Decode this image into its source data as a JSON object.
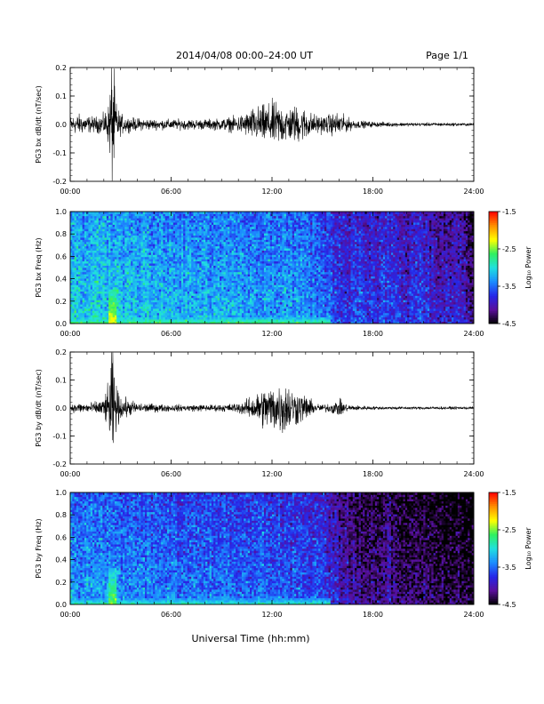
{
  "header": {
    "title": "2014/04/08  00:00–24:00 UT",
    "page": "Page 1/1"
  },
  "footer": {
    "xlabel": "Universal Time (hh:mm)"
  },
  "colors": {
    "trace": "#000000",
    "colormap": [
      "#000000",
      "#5a0f9a",
      "#2626e8",
      "#1c8cff",
      "#20e0e0",
      "#30f060",
      "#ffff00",
      "#ff9000",
      "#ff0000"
    ]
  },
  "chart_data": [
    {
      "type": "line",
      "title": "",
      "ylabel": "PG3 bx dB/dt (nT/sec)",
      "xlabel": "",
      "x_ticks": [
        "00:00",
        "06:00",
        "12:00",
        "18:00",
        "24:00"
      ],
      "xlim_hours": [
        0,
        24
      ],
      "ylim": [
        -0.2,
        0.2
      ],
      "y_ticks": [
        "0.2",
        "0.1",
        "0.0",
        "-0.1",
        "-0.2"
      ],
      "series": [
        {
          "envelope": {
            "x_hours": [
              0,
              0.5,
              1,
              1.5,
              2,
              2.3,
              2.45,
              2.6,
              2.75,
              3,
              3.5,
              4,
              5,
              6,
              7,
              8,
              9,
              10,
              10.5,
              11,
              11.5,
              12,
              12.5,
              13,
              13.5,
              14,
              14.5,
              15,
              15.5,
              16,
              16.5,
              17,
              18,
              20,
              22,
              24
            ],
            "amplitude": [
              0.025,
              0.03,
              0.025,
              0.022,
              0.03,
              0.06,
              0.2,
              0.15,
              0.06,
              0.03,
              0.02,
              0.018,
              0.015,
              0.015,
              0.015,
              0.015,
              0.017,
              0.025,
              0.035,
              0.05,
              0.055,
              0.065,
              0.06,
              0.05,
              0.055,
              0.045,
              0.03,
              0.025,
              0.03,
              0.035,
              0.02,
              0.012,
              0.008,
              0.005,
              0.005,
              0.004
            ]
          }
        }
      ]
    },
    {
      "type": "heatmap",
      "title": "",
      "ylabel": "PG3 bx Freq (Hz)",
      "xlabel": "",
      "x_ticks": [
        "00:00",
        "06:00",
        "12:00",
        "18:00",
        "24:00"
      ],
      "xlim_hours": [
        0,
        24
      ],
      "ylim": [
        0,
        1
      ],
      "y_ticks": [
        "1.0",
        "0.8",
        "0.6",
        "0.4",
        "0.2",
        "0.0"
      ],
      "colorbar": {
        "label": "Log₁₀ Power",
        "range": [
          -4.5,
          -1.5
        ],
        "ticks": [
          "-1.5",
          "-2.5",
          "-3.5",
          "-4.5"
        ]
      },
      "power_profile": {
        "x_hours": [
          0,
          2,
          6,
          10,
          12,
          14,
          15.5,
          16.5,
          17,
          18,
          19,
          20,
          21,
          22,
          23,
          24
        ],
        "level": [
          -3.05,
          -3.05,
          -3.15,
          -3.2,
          -3.25,
          -3.3,
          -3.45,
          -3.8,
          -3.55,
          -3.75,
          -3.6,
          -3.85,
          -3.65,
          -3.9,
          -3.8,
          -4.1
        ]
      },
      "features": [
        {
          "name": "low-frequency enhancement",
          "x_hours": [
            0,
            15.5
          ],
          "freq_below": 0.05,
          "level": -2.6
        },
        {
          "name": "burst",
          "x_hours": [
            2.3,
            2.7
          ],
          "freq_below": 0.3,
          "level": -2.3
        }
      ]
    },
    {
      "type": "line",
      "title": "",
      "ylabel": "PG3 by dB/dt (nT/sec)",
      "xlabel": "",
      "x_ticks": [
        "00:00",
        "06:00",
        "12:00",
        "18:00",
        "24:00"
      ],
      "xlim_hours": [
        0,
        24
      ],
      "ylim": [
        -0.2,
        0.2
      ],
      "y_ticks": [
        "0.2",
        "0.1",
        "0.0",
        "-0.1",
        "-0.2"
      ],
      "series": [
        {
          "envelope": {
            "x_hours": [
              0,
              0.5,
              1,
              1.5,
              2,
              2.3,
              2.45,
              2.6,
              2.75,
              3,
              3.5,
              4,
              5,
              6,
              7,
              8,
              9,
              10,
              10.5,
              11,
              11.5,
              12,
              12.5,
              13,
              13.5,
              14,
              14.5,
              15,
              15.5,
              16,
              16.5,
              17,
              18,
              20,
              22,
              24
            ],
            "amplitude": [
              0.012,
              0.015,
              0.015,
              0.018,
              0.03,
              0.07,
              0.19,
              0.13,
              0.06,
              0.035,
              0.025,
              0.015,
              0.012,
              0.01,
              0.01,
              0.01,
              0.01,
              0.015,
              0.025,
              0.04,
              0.06,
              0.065,
              0.08,
              0.07,
              0.05,
              0.04,
              0.015,
              0.01,
              0.015,
              0.025,
              0.01,
              0.007,
              0.005,
              0.004,
              0.004,
              0.004
            ]
          }
        }
      ]
    },
    {
      "type": "heatmap",
      "title": "",
      "ylabel": "PG3 by Freq (Hz)",
      "xlabel": "",
      "x_ticks": [
        "00:00",
        "06:00",
        "12:00",
        "18:00",
        "24:00"
      ],
      "xlim_hours": [
        0,
        24
      ],
      "ylim": [
        0,
        1
      ],
      "y_ticks": [
        "1.0",
        "0.8",
        "0.6",
        "0.4",
        "0.2",
        "0.0"
      ],
      "colorbar": {
        "label": "Log₁₀ Power",
        "range": [
          -4.5,
          -1.5
        ],
        "ticks": [
          "-1.5",
          "-2.5",
          "-3.5",
          "-4.5"
        ]
      },
      "power_profile": {
        "x_hours": [
          0,
          2,
          6,
          10,
          12,
          14,
          15.5,
          16.5,
          17,
          18,
          19,
          20,
          21,
          22,
          23,
          24
        ],
        "level": [
          -3.3,
          -3.3,
          -3.4,
          -3.45,
          -3.5,
          -3.55,
          -3.75,
          -4.0,
          -4.05,
          -4.15,
          -4.05,
          -4.25,
          -4.15,
          -4.3,
          -4.3,
          -4.35
        ]
      },
      "features": [
        {
          "name": "low-frequency enhancement",
          "x_hours": [
            0,
            15.5
          ],
          "freq_below": 0.05,
          "level": -2.8
        },
        {
          "name": "burst",
          "x_hours": [
            2.3,
            2.7
          ],
          "freq_below": 0.32,
          "level": -2.5
        }
      ]
    }
  ]
}
